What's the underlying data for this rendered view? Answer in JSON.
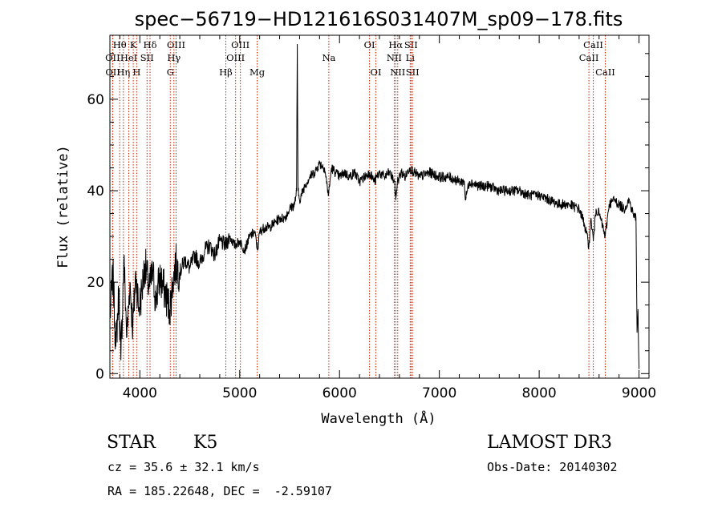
{
  "chart_data": {
    "type": "line",
    "title": "spec−56719−HD121616S031407M_sp09−178.fits",
    "xlabel": "Wavelength (Å)",
    "ylabel": "Flux (relative)",
    "xlim": [
      3700,
      9100
    ],
    "ylim": [
      -1,
      74
    ],
    "xticks": [
      4000,
      5000,
      6000,
      7000,
      8000,
      9000
    ],
    "xtick_labels": [
      "4000",
      "5000",
      "6000",
      "7000",
      "8000",
      "9000"
    ],
    "yticks": [
      0,
      20,
      40,
      60
    ],
    "ytick_labels": [
      "0",
      "20",
      "40",
      "60"
    ],
    "line_color": "#000000",
    "marker_color": "#cc2200",
    "series": [
      {
        "name": "flux",
        "x": [
          3700,
          3730,
          3760,
          3790,
          3810,
          3840,
          3870,
          3900,
          3930,
          3960,
          3990,
          4020,
          4050,
          4080,
          4100,
          4130,
          4160,
          4200,
          4250,
          4300,
          4330,
          4360,
          4400,
          4450,
          4500,
          4550,
          4600,
          4650,
          4700,
          4750,
          4800,
          4860,
          4900,
          4950,
          5000,
          5050,
          5100,
          5150,
          5180,
          5200,
          5250,
          5300,
          5350,
          5400,
          5450,
          5500,
          5550,
          5570,
          5577,
          5584,
          5600,
          5650,
          5700,
          5750,
          5800,
          5850,
          5890,
          5920,
          5960,
          6000,
          6050,
          6100,
          6150,
          6200,
          6250,
          6300,
          6350,
          6400,
          6450,
          6500,
          6550,
          6563,
          6580,
          6620,
          6660,
          6700,
          6750,
          6800,
          6900,
          7000,
          7100,
          7200,
          7250,
          7260,
          7300,
          7400,
          7500,
          7600,
          7700,
          7800,
          7900,
          8000,
          8100,
          8200,
          8300,
          8400,
          8450,
          8498,
          8520,
          8542,
          8570,
          8600,
          8662,
          8700,
          8750,
          8800,
          8850,
          8900,
          8940,
          8970,
          8980,
          8990,
          9000
        ],
        "y": [
          12,
          22,
          6,
          18,
          3,
          25,
          8,
          20,
          10,
          22,
          14,
          18,
          24,
          20,
          19,
          22,
          16,
          21,
          18,
          14,
          20,
          24,
          22,
          25,
          23,
          26,
          24,
          27,
          28,
          26,
          29,
          28,
          30,
          28,
          29,
          27,
          30,
          31,
          27,
          31,
          32,
          32,
          33,
          34,
          34,
          36,
          37,
          40,
          72,
          40,
          38,
          41,
          43,
          44,
          46,
          45,
          39,
          45,
          44,
          43,
          44,
          43,
          44,
          42,
          43,
          44,
          42,
          44,
          43,
          44,
          42,
          38,
          42,
          44,
          43,
          45,
          44,
          43,
          44,
          43,
          43,
          42,
          42,
          38,
          42,
          41,
          41,
          40,
          40,
          40,
          39,
          39,
          38,
          37,
          37,
          36,
          33,
          28,
          34,
          29,
          36,
          35,
          30,
          37,
          38,
          37,
          36,
          38,
          35,
          34,
          9,
          14,
          1
        ]
      }
    ],
    "line_markers": [
      {
        "label": "Hθ",
        "wave": 3798,
        "row": 0
      },
      {
        "label": "OII",
        "wave": 3727,
        "row": 1
      },
      {
        "label": "OII",
        "wave": 3729,
        "row": 2
      },
      {
        "label": "HeI",
        "wave": 3889,
        "row": 1
      },
      {
        "label": "Hη",
        "wave": 3835,
        "row": 2
      },
      {
        "label": "K",
        "wave": 3934,
        "row": 0
      },
      {
        "label": "SII",
        "wave": 4072,
        "row": 1
      },
      {
        "label": "H",
        "wave": 3968,
        "row": 2
      },
      {
        "label": "Hδ",
        "wave": 4102,
        "row": 0
      },
      {
        "label": "OIII",
        "wave": 4363,
        "row": 0
      },
      {
        "label": "Hγ",
        "wave": 4341,
        "row": 1
      },
      {
        "label": "G",
        "wave": 4305,
        "row": 2
      },
      {
        "label": "Hβ",
        "wave": 4861,
        "row": 2
      },
      {
        "label": "OIII",
        "wave": 5007,
        "row": 0
      },
      {
        "label": "OIII",
        "wave": 4959,
        "row": 1
      },
      {
        "label": "Mg",
        "wave": 5175,
        "row": 2
      },
      {
        "label": "Na",
        "wave": 5893,
        "row": 1
      },
      {
        "label": "OI",
        "wave": 6300,
        "row": 0
      },
      {
        "label": "OI",
        "wave": 6364,
        "row": 2
      },
      {
        "label": "Hα",
        "wave": 6563,
        "row": 0
      },
      {
        "label": "NII",
        "wave": 6548,
        "row": 1
      },
      {
        "label": "NII",
        "wave": 6583,
        "row": 2
      },
      {
        "label": "SII",
        "wave": 6716,
        "row": 0
      },
      {
        "label": "Li",
        "wave": 6708,
        "row": 1
      },
      {
        "label": "SII",
        "wave": 6731,
        "row": 2
      },
      {
        "label": "CaII",
        "wave": 8542,
        "row": 0
      },
      {
        "label": "CaII",
        "wave": 8498,
        "row": 1
      },
      {
        "label": "CaII",
        "wave": 8662,
        "row": 2
      }
    ]
  },
  "info": {
    "object_class": "STAR",
    "subclass": "K5",
    "survey": "LAMOST DR3",
    "cz_line": "cz = 35.6 ± 32.1 km/s",
    "obs_date": "Obs-Date: 20140302",
    "coords": "RA = 185.22648, DEC =  -2.59107"
  }
}
